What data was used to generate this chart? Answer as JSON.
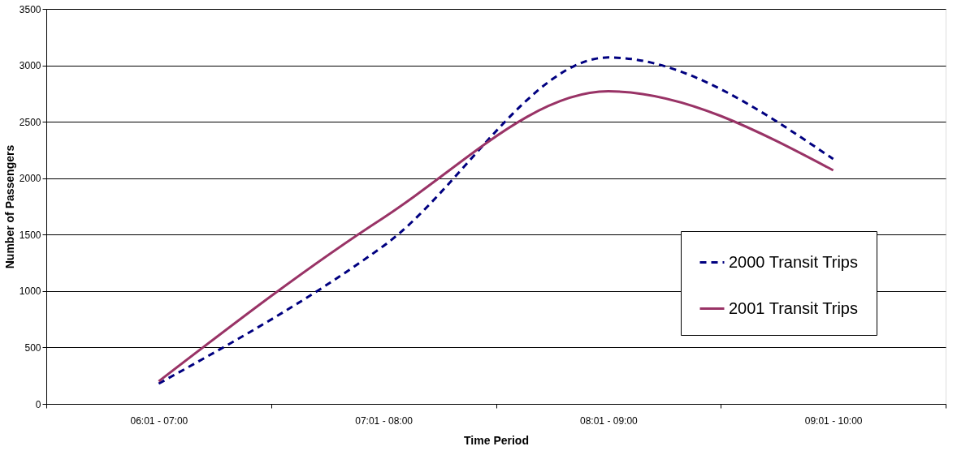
{
  "chart_data": {
    "type": "line",
    "xlabel": "Time Period",
    "ylabel": "Number of Passengers",
    "categories": [
      "06:01 - 07:00",
      "07:01 - 08:00",
      "08:01 - 09:00",
      "09:01 - 10:00"
    ],
    "series": [
      {
        "name": "2000 Transit Trips",
        "color": "#000080",
        "line_style": "dashed",
        "values": [
          180,
          1400,
          3070,
          2170
        ]
      },
      {
        "name": "2001 Transit Trips",
        "color": "#993366",
        "line_style": "solid",
        "values": [
          200,
          1650,
          2770,
          2070
        ]
      }
    ],
    "ylim": [
      0,
      3500
    ],
    "yticks": [
      0,
      500,
      1000,
      1500,
      2000,
      2500,
      3000,
      3500
    ],
    "grid": "y",
    "legend": "bottom right",
    "marker": "none"
  }
}
